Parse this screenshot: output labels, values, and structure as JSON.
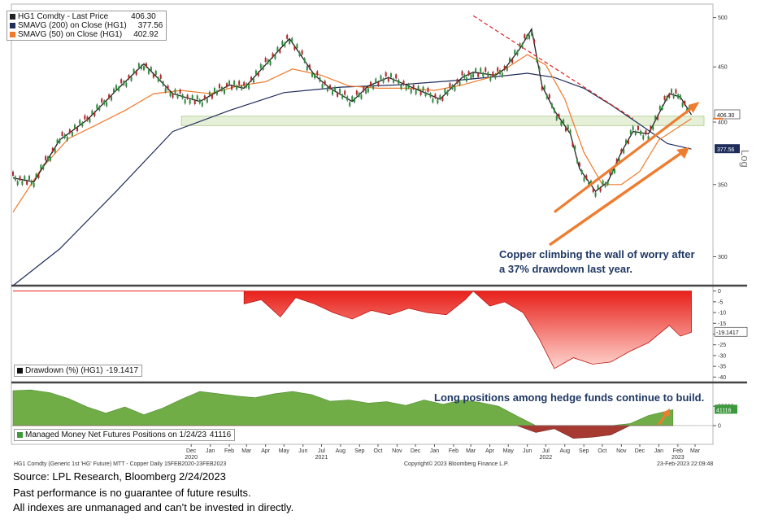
{
  "chart_data": [
    {
      "type": "line",
      "panel": "price",
      "series": [
        {
          "name": "HG1 Comdty - Last Price",
          "last": "406.30",
          "color": "#222222",
          "x": [
            "2020-02-15",
            "2020-03-20",
            "2020-05-01",
            "2020-06-15",
            "2020-08-01",
            "2020-09-15",
            "2020-11-01",
            "2020-12-15",
            "2021-02-01",
            "2021-02-25",
            "2021-05-10",
            "2021-06-20",
            "2021-07-15",
            "2021-08-20",
            "2021-09-15",
            "2021-10-18",
            "2021-11-20",
            "2022-01-10",
            "2022-02-15",
            "2022-03-05",
            "2022-04-10",
            "2022-04-25",
            "2022-05-20",
            "2022-06-08",
            "2022-06-25",
            "2022-07-15",
            "2022-08-10",
            "2022-08-25",
            "2022-09-20",
            "2022-10-10",
            "2022-11-01",
            "2022-11-20",
            "2022-12-15",
            "2023-01-18",
            "2023-02-05",
            "2023-02-23"
          ],
          "y": [
            355,
            352,
            385,
            402,
            428,
            453,
            425,
            418,
            433,
            430,
            478,
            442,
            430,
            418,
            432,
            440,
            432,
            420,
            440,
            445,
            442,
            448,
            468,
            488,
            432,
            410,
            390,
            362,
            345,
            352,
            375,
            392,
            390,
            425,
            422,
            406.3
          ]
        },
        {
          "name": "SMAVG (200)  on Close (HG1)",
          "last": "377.56",
          "color": "#1f2d5a",
          "x": [
            "2020-02-15",
            "2020-05-01",
            "2020-08-01",
            "2020-11-01",
            "2021-02-01",
            "2021-05-01",
            "2021-08-01",
            "2021-11-01",
            "2022-02-01",
            "2022-04-15",
            "2022-06-01",
            "2022-07-15",
            "2022-09-01",
            "2022-10-15",
            "2022-12-01",
            "2023-01-15",
            "2023-02-23"
          ],
          "y": [
            282,
            305,
            345,
            392,
            410,
            426,
            431,
            433,
            437,
            441,
            444,
            440,
            430,
            415,
            398,
            382,
            377.56
          ]
        },
        {
          "name": "SMAVG (50)  on Close (HG1)",
          "last": "402.92",
          "color": "#f07a2a",
          "x": [
            "2020-02-15",
            "2020-04-01",
            "2020-05-15",
            "2020-07-01",
            "2020-08-15",
            "2020-10-01",
            "2020-11-15",
            "2021-01-01",
            "2021-02-15",
            "2021-04-01",
            "2021-05-15",
            "2021-07-01",
            "2021-08-15",
            "2021-10-01",
            "2021-11-15",
            "2022-01-01",
            "2022-02-15",
            "2022-04-01",
            "2022-05-01",
            "2022-06-01",
            "2022-07-01",
            "2022-08-01",
            "2022-09-01",
            "2022-10-01",
            "2022-11-01",
            "2022-12-01",
            "2023-01-01",
            "2023-02-23"
          ],
          "y": [
            330,
            362,
            386,
            398,
            410,
            425,
            428,
            425,
            432,
            436,
            448,
            442,
            432,
            430,
            430,
            428,
            433,
            440,
            450,
            462,
            452,
            420,
            375,
            350,
            350,
            360,
            385,
            402.92
          ]
        }
      ],
      "y_ticks": [
        300,
        350,
        400,
        450,
        500
      ],
      "ylim": [
        283,
        512
      ],
      "current_price_label": "406.30",
      "sma200_label": "377.56",
      "right_axis_label": "Log",
      "trendline_resistance": {
        "from": [
          "2022-03-05",
          502
        ],
        "to": [
          "2022-11-20",
          403
        ]
      },
      "trendline_support": {
        "from": [
          "2022-07-15",
          330
        ],
        "to": [
          "2023-02-23",
          412
        ]
      },
      "support_band": [
        397,
        405
      ],
      "annotation": "Copper climbing the wall of worry after a 37% drawdown last year.",
      "legend_placement": "top-left"
    },
    {
      "type": "area",
      "panel": "drawdown",
      "series": [
        {
          "name": "Drawdown (%) (HG1)",
          "last": "-19.1417",
          "color": "#e8201a",
          "x": [
            "2021-02-25",
            "2021-03-25",
            "2021-04-25",
            "2021-05-20",
            "2021-06-20",
            "2021-07-20",
            "2021-08-20",
            "2021-09-20",
            "2021-10-20",
            "2021-11-20",
            "2021-12-20",
            "2022-01-20",
            "2022-02-20",
            "2022-03-05",
            "2022-04-01",
            "2022-04-25",
            "2022-05-25",
            "2022-06-20",
            "2022-07-15",
            "2022-08-15",
            "2022-09-15",
            "2022-10-15",
            "2022-11-15",
            "2022-12-15",
            "2023-01-18",
            "2023-02-05",
            "2023-02-23"
          ],
          "y": [
            -6,
            -4,
            -12,
            -3,
            -6,
            -10,
            -13,
            -9,
            -11,
            -8,
            -10,
            -11,
            -4,
            0,
            -7,
            -5,
            -10,
            -22,
            -36,
            -31,
            -34,
            -33,
            -28,
            -24,
            -16,
            -21,
            -19.14
          ]
        }
      ],
      "y_ticks": [
        0,
        -5,
        -10,
        -15,
        -20,
        -25,
        -30,
        -35,
        -40
      ],
      "ylim": [
        -41,
        1
      ],
      "legend_placement": "bottom-left"
    },
    {
      "type": "area",
      "panel": "positioning",
      "series": [
        {
          "name": "Managed Money Net Futures Positions on 1/24/23",
          "last": "41116",
          "color_pos": "#70ad47",
          "color_neg": "#a63a32",
          "x": [
            "2020-02-15",
            "2020-03-15",
            "2020-04-15",
            "2020-05-15",
            "2020-06-15",
            "2020-07-15",
            "2020-08-15",
            "2020-09-15",
            "2020-10-15",
            "2020-11-15",
            "2020-12-15",
            "2021-01-15",
            "2021-02-15",
            "2021-03-15",
            "2021-04-15",
            "2021-05-15",
            "2021-06-15",
            "2021-07-15",
            "2021-08-15",
            "2021-09-15",
            "2021-10-15",
            "2021-11-15",
            "2021-12-15",
            "2022-01-15",
            "2022-02-15",
            "2022-03-15",
            "2022-04-15",
            "2022-05-15",
            "2022-06-15",
            "2022-07-15",
            "2022-08-15",
            "2022-09-15",
            "2022-10-15",
            "2022-11-15",
            "2022-12-15",
            "2023-01-24"
          ],
          "y": [
            90000,
            92000,
            85000,
            70000,
            48000,
            32000,
            48000,
            28000,
            45000,
            68000,
            88000,
            82000,
            76000,
            72000,
            82000,
            88000,
            80000,
            63000,
            66000,
            58000,
            62000,
            52000,
            66000,
            55000,
            66000,
            60000,
            50000,
            25000,
            -18000,
            -8000,
            -33000,
            -30000,
            -24000,
            5000,
            26000,
            41116
          ]
        }
      ],
      "y_ticks": [
        0,
        50000
      ],
      "y_tick_labels": [
        "0",
        "50000"
      ],
      "ylim": [
        -40000,
        105000
      ],
      "annotation": "Long positions among hedge funds continue to build.",
      "legend_placement": "bottom-left"
    }
  ],
  "x_axis": {
    "months": [
      {
        "label": "Dec",
        "date": "2020-12-01"
      },
      {
        "label": "Jan",
        "date": "2021-01-01"
      },
      {
        "label": "Feb",
        "date": "2021-02-01"
      },
      {
        "label": "Mar",
        "date": "2021-03-01"
      },
      {
        "label": "Apr",
        "date": "2021-04-01"
      },
      {
        "label": "May",
        "date": "2021-05-01"
      },
      {
        "label": "Jun",
        "date": "2021-06-01"
      },
      {
        "label": "Jul",
        "date": "2021-07-01"
      },
      {
        "label": "Aug",
        "date": "2021-08-01"
      },
      {
        "label": "Sep",
        "date": "2021-09-01"
      },
      {
        "label": "Oct",
        "date": "2021-10-01"
      },
      {
        "label": "Nov",
        "date": "2021-11-01"
      },
      {
        "label": "Dec",
        "date": "2021-12-01"
      },
      {
        "label": "Jan",
        "date": "2022-01-01"
      },
      {
        "label": "Feb",
        "date": "2022-02-01"
      },
      {
        "label": "Mar",
        "date": "2022-03-01"
      },
      {
        "label": "Apr",
        "date": "2022-04-01"
      },
      {
        "label": "May",
        "date": "2022-05-01"
      },
      {
        "label": "Jun",
        "date": "2022-06-01"
      },
      {
        "label": "Jul",
        "date": "2022-07-01"
      },
      {
        "label": "Aug",
        "date": "2022-08-01"
      },
      {
        "label": "Sep",
        "date": "2022-09-01"
      },
      {
        "label": "Oct",
        "date": "2022-10-01"
      },
      {
        "label": "Nov",
        "date": "2022-11-01"
      },
      {
        "label": "Dec",
        "date": "2022-12-01"
      },
      {
        "label": "Jan",
        "date": "2023-01-01"
      },
      {
        "label": "Feb",
        "date": "2023-02-01"
      },
      {
        "label": "Mar",
        "date": "2023-03-01"
      }
    ],
    "years": [
      {
        "label": "2020",
        "date": "2020-12-01"
      },
      {
        "label": "2021",
        "date": "2021-07-01"
      },
      {
        "label": "2022",
        "date": "2022-07-01"
      },
      {
        "label": "2023",
        "date": "2023-02-01"
      }
    ]
  },
  "footer": {
    "series_caption": "HG1 Comdty (Generic 1st 'HG' Future) MTT - Copper  Daily 15FEB2020-23FEB2023",
    "copyright": "Copyright© 2023 Bloomberg Finance L.P.",
    "timestamp": "23-Feb-2023 22:09:48"
  },
  "notes": {
    "source": "Source: LPL Research, Bloomberg 2/24/2023",
    "disclaimer1": "Past performance is no guarantee of future results.",
    "disclaimer2": "All indexes are unmanaged and can’t be invested in directly."
  },
  "colors": {
    "price_bg": "#ffffff",
    "support_band": "#e6f0d8",
    "drawdown": "#e8201a",
    "positive": "#70ad47",
    "negative": "#a63a32",
    "arrow": "#ed7d31",
    "navy": "#1f3864"
  }
}
